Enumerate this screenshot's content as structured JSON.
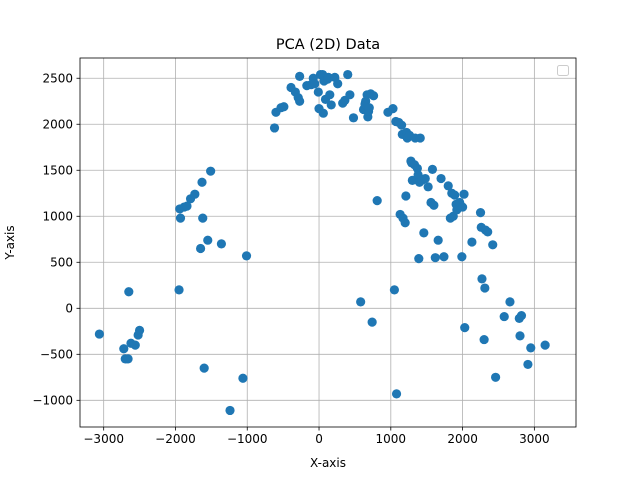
{
  "chart_data": {
    "type": "scatter",
    "title": "PCA (2D) Data",
    "xlabel": "X-axis",
    "ylabel": "Y-axis",
    "xlim": [
      -3330,
      3580
    ],
    "ylim": [
      -1290,
      2720
    ],
    "xticks": [
      -3000,
      -2000,
      -1000,
      0,
      1000,
      2000,
      3000
    ],
    "yticks": [
      -1000,
      -500,
      0,
      500,
      1000,
      1500,
      2000,
      2500
    ],
    "grid": true,
    "legend": "top-right",
    "color": "#1f77b4",
    "series": [
      {
        "points": [
          [
            -3060,
            -280
          ],
          [
            -2720,
            -440
          ],
          [
            -2700,
            -550
          ],
          [
            -2660,
            -550
          ],
          [
            -2650,
            180
          ],
          [
            -2620,
            -380
          ],
          [
            -2560,
            -400
          ],
          [
            -2520,
            -290
          ],
          [
            -2500,
            -240
          ],
          [
            -1950,
            200
          ],
          [
            -1940,
            1080
          ],
          [
            -1930,
            980
          ],
          [
            -1880,
            1100
          ],
          [
            -1840,
            1110
          ],
          [
            -1790,
            1190
          ],
          [
            -1730,
            1240
          ],
          [
            -1650,
            650
          ],
          [
            -1630,
            1370
          ],
          [
            -1620,
            980
          ],
          [
            -1600,
            -650
          ],
          [
            -1550,
            740
          ],
          [
            -1510,
            1490
          ],
          [
            -1360,
            700
          ],
          [
            -1240,
            -1110
          ],
          [
            -1060,
            -760
          ],
          [
            -1010,
            570
          ],
          [
            -620,
            1960
          ],
          [
            -600,
            2130
          ],
          [
            -530,
            2180
          ],
          [
            -490,
            2190
          ],
          [
            -390,
            2400
          ],
          [
            -330,
            2350
          ],
          [
            -290,
            2290
          ],
          [
            -270,
            2250
          ],
          [
            -270,
            2520
          ],
          [
            -170,
            2420
          ],
          [
            -110,
            2430
          ],
          [
            -80,
            2500
          ],
          [
            -60,
            2440
          ],
          [
            -10,
            2350
          ],
          [
            0,
            2170
          ],
          [
            20,
            2540
          ],
          [
            50,
            2540
          ],
          [
            60,
            2120
          ],
          [
            70,
            2470
          ],
          [
            90,
            2270
          ],
          [
            120,
            2490
          ],
          [
            130,
            2510
          ],
          [
            150,
            2320
          ],
          [
            170,
            2210
          ],
          [
            220,
            2510
          ],
          [
            260,
            2440
          ],
          [
            330,
            2230
          ],
          [
            360,
            2260
          ],
          [
            400,
            2540
          ],
          [
            430,
            2320
          ],
          [
            480,
            2070
          ],
          [
            580,
            70
          ],
          [
            620,
            2160
          ],
          [
            640,
            2220
          ],
          [
            650,
            2250
          ],
          [
            670,
            2320
          ],
          [
            680,
            2080
          ],
          [
            690,
            2140
          ],
          [
            700,
            2180
          ],
          [
            720,
            2330
          ],
          [
            740,
            -150
          ],
          [
            760,
            2310
          ],
          [
            810,
            1170
          ],
          [
            960,
            2130
          ],
          [
            1030,
            2170
          ],
          [
            1050,
            200
          ],
          [
            1070,
            2030
          ],
          [
            1080,
            -930
          ],
          [
            1110,
            2020
          ],
          [
            1130,
            1020
          ],
          [
            1150,
            1990
          ],
          [
            1160,
            1890
          ],
          [
            1170,
            980
          ],
          [
            1200,
            930
          ],
          [
            1210,
            1220
          ],
          [
            1220,
            1910
          ],
          [
            1230,
            1850
          ],
          [
            1260,
            1880
          ],
          [
            1280,
            1600
          ],
          [
            1290,
            1580
          ],
          [
            1300,
            1390
          ],
          [
            1330,
            1560
          ],
          [
            1340,
            1850
          ],
          [
            1370,
            1520
          ],
          [
            1380,
            1450
          ],
          [
            1390,
            540
          ],
          [
            1400,
            1370
          ],
          [
            1410,
            1850
          ],
          [
            1430,
            1390
          ],
          [
            1460,
            820
          ],
          [
            1480,
            1410
          ],
          [
            1520,
            1320
          ],
          [
            1560,
            1150
          ],
          [
            1580,
            1510
          ],
          [
            1600,
            1120
          ],
          [
            1620,
            550
          ],
          [
            1660,
            740
          ],
          [
            1700,
            1410
          ],
          [
            1740,
            560
          ],
          [
            1800,
            1330
          ],
          [
            1830,
            980
          ],
          [
            1850,
            1250
          ],
          [
            1870,
            1000
          ],
          [
            1890,
            1230
          ],
          [
            1910,
            1130
          ],
          [
            1920,
            1070
          ],
          [
            1960,
            1150
          ],
          [
            1990,
            560
          ],
          [
            2000,
            1100
          ],
          [
            2020,
            1240
          ],
          [
            2030,
            -210
          ],
          [
            2130,
            720
          ],
          [
            2250,
            1040
          ],
          [
            2260,
            880
          ],
          [
            2270,
            320
          ],
          [
            2300,
            -340
          ],
          [
            2310,
            220
          ],
          [
            2320,
            850
          ],
          [
            2350,
            830
          ],
          [
            2420,
            690
          ],
          [
            2460,
            -750
          ],
          [
            2580,
            -90
          ],
          [
            2660,
            70
          ],
          [
            2790,
            -110
          ],
          [
            2800,
            -300
          ],
          [
            2820,
            -80
          ],
          [
            2910,
            -610
          ],
          [
            2950,
            -430
          ],
          [
            3150,
            -400
          ]
        ]
      }
    ]
  }
}
